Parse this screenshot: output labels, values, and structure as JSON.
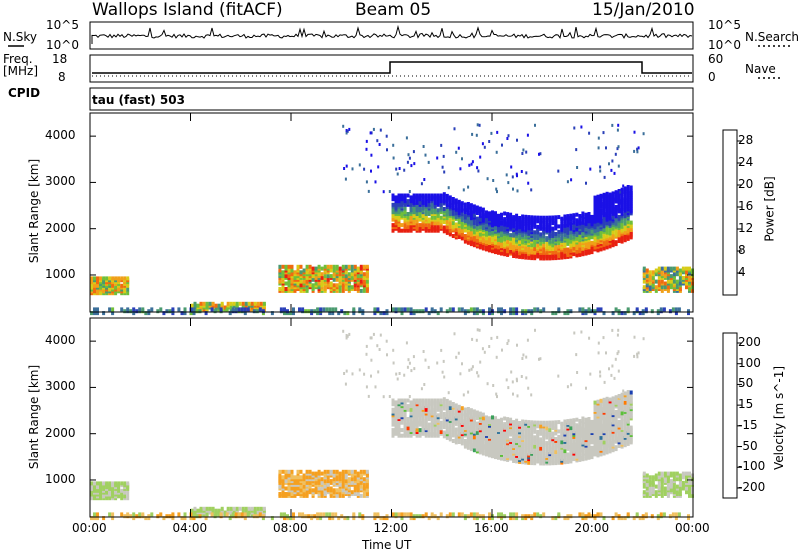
{
  "header": {
    "station": "Wallops Island (fitACF)",
    "beam": "Beam 05",
    "date": "15/Jan/2010"
  },
  "strip": {
    "nsky_label": "N.Sky",
    "nsky_ticks": [
      "10^5",
      "10^0"
    ],
    "nsearch_label": "N.Search",
    "nsearch_ticks": [
      "10^5",
      "10^0"
    ],
    "freq_label": "Freq.",
    "freq_unit": "[MHz]",
    "freq_tick": "18",
    "freq_tick2": "8",
    "nave_label": "Nave",
    "nave_ticks": [
      "60",
      "0"
    ],
    "cpid_label": "CPID",
    "cpid_value": "tau (fast) 503"
  },
  "colors": {
    "power_scale": [
      "#1a10e6",
      "#2a3fb8",
      "#3b6f9a",
      "#4a9a6f",
      "#6fbf3a",
      "#d8cc18",
      "#f0a018",
      "#f06a10",
      "#e82010"
    ],
    "velocity_scale": [
      "#ff0000",
      "#ff3c00",
      "#ff7a00",
      "#f5a020",
      "#f0c060",
      "#c8c8c0",
      "#a0d060",
      "#5cbf3a",
      "#3aa05a",
      "#2a6f9a",
      "#1a3fb0"
    ]
  },
  "chart_data": [
    {
      "type": "heatmap",
      "panel": "power",
      "ylabel": "Slant Range [km]",
      "xlabel": "Time UT",
      "yticks": [
        "1000",
        "2000",
        "3000",
        "4000"
      ],
      "ylim": [
        200,
        4500
      ],
      "xticks": [
        "00:00",
        "04:00",
        "08:00",
        "12:00",
        "16:00",
        "20:00",
        "00:00"
      ],
      "colorbar_label": "Power [dB]",
      "colorbar_ticks": [
        "4",
        "8",
        "12",
        "16",
        "20",
        "24",
        "28"
      ],
      "clim": [
        0,
        30
      ]
    },
    {
      "type": "heatmap",
      "panel": "velocity",
      "ylabel": "Slant Range [km]",
      "xlabel": "Time UT",
      "yticks": [
        "1000",
        "2000",
        "3000",
        "4000"
      ],
      "ylim": [
        200,
        4500
      ],
      "xticks": [
        "00:00",
        "04:00",
        "08:00",
        "12:00",
        "16:00",
        "20:00",
        "00:00"
      ],
      "colorbar_label": "Velocity [m s^-1]",
      "colorbar_ticks": [
        "200",
        "100",
        "50",
        "15",
        "-15",
        "-50",
        "-100",
        "-200"
      ],
      "clim": [
        -250,
        250
      ]
    }
  ]
}
